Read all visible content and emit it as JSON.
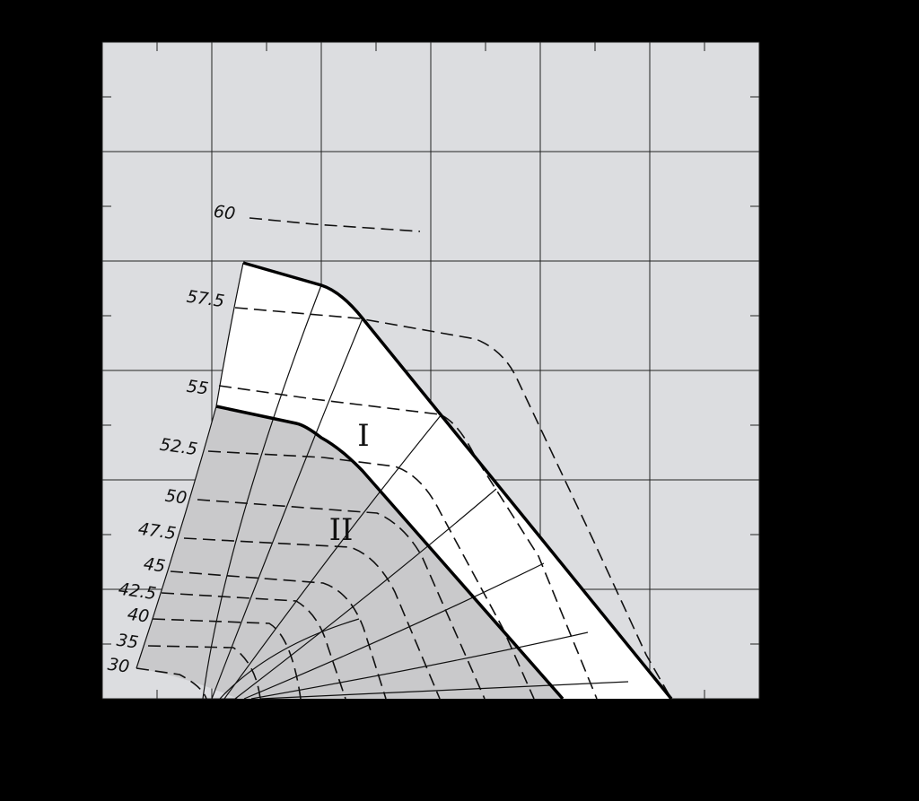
{
  "contours": [
    {
      "label": "60"
    },
    {
      "label": "57.5"
    },
    {
      "label": "55"
    },
    {
      "label": "52.5"
    },
    {
      "label": "50"
    },
    {
      "label": "47.5"
    },
    {
      "label": "45"
    },
    {
      "label": "42.5"
    },
    {
      "label": "40"
    },
    {
      "label": "35"
    },
    {
      "label": "30"
    }
  ],
  "regions": [
    {
      "label": "I"
    },
    {
      "label": "II"
    }
  ]
}
